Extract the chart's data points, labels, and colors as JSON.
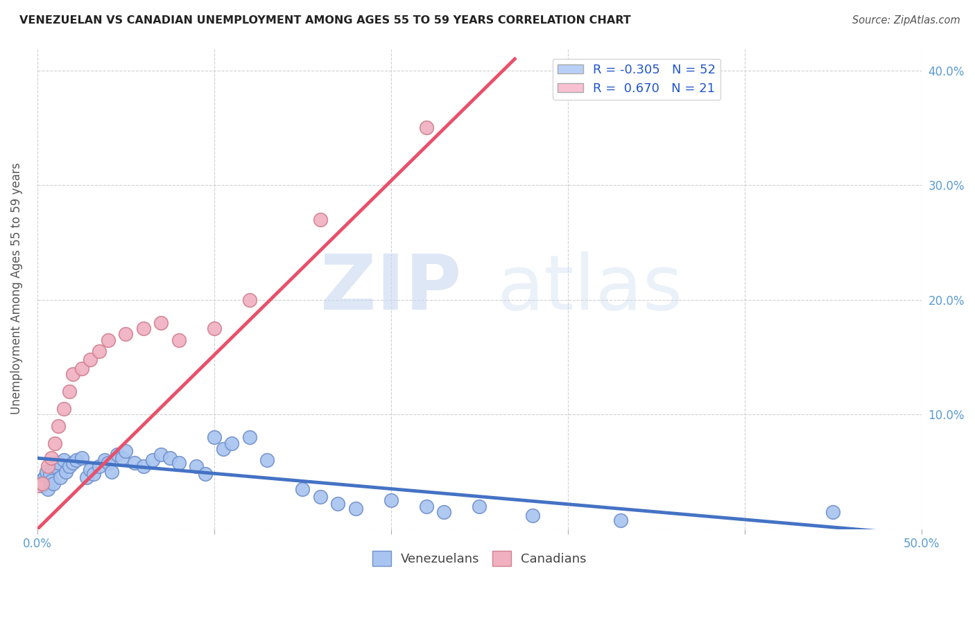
{
  "title": "VENEZUELAN VS CANADIAN UNEMPLOYMENT AMONG AGES 55 TO 59 YEARS CORRELATION CHART",
  "source": "Source: ZipAtlas.com",
  "ylabel": "Unemployment Among Ages 55 to 59 years",
  "xlim": [
    0.0,
    0.5
  ],
  "ylim": [
    0.0,
    0.42
  ],
  "yticks": [
    0.0,
    0.1,
    0.2,
    0.3,
    0.4
  ],
  "ytick_labels_right": [
    "",
    "10.0%",
    "20.0%",
    "30.0%",
    "40.0%"
  ],
  "xticks": [
    0.0,
    0.1,
    0.2,
    0.3,
    0.4,
    0.5
  ],
  "xtick_labels": [
    "0.0%",
    "",
    "",
    "",
    "",
    "50.0%"
  ],
  "venezuelan_color": "#a8c4f0",
  "canadian_color": "#f0b0c0",
  "venezuelan_edge": "#7090cc",
  "canadian_edge": "#d08090",
  "trend_blue": "#4472c4",
  "trend_pink": "#e8506a",
  "legend_box_blue": "#b8d0f8",
  "legend_box_pink": "#f8c0d0",
  "R_venezuelan": -0.305,
  "N_venezuelan": 52,
  "R_canadian": 0.67,
  "N_canadian": 21,
  "watermark_zip": "ZIP",
  "watermark_atlas": "atlas",
  "background_color": "#ffffff",
  "venezuelan_x": [
    0.001,
    0.002,
    0.003,
    0.004,
    0.005,
    0.006,
    0.007,
    0.008,
    0.009,
    0.01,
    0.012,
    0.013,
    0.015,
    0.016,
    0.018,
    0.02,
    0.022,
    0.025,
    0.028,
    0.03,
    0.032,
    0.035,
    0.038,
    0.04,
    0.042,
    0.045,
    0.048,
    0.05,
    0.055,
    0.06,
    0.065,
    0.07,
    0.075,
    0.08,
    0.09,
    0.095,
    0.1,
    0.105,
    0.11,
    0.12,
    0.13,
    0.15,
    0.16,
    0.17,
    0.18,
    0.2,
    0.22,
    0.23,
    0.25,
    0.28,
    0.33,
    0.45
  ],
  "venezuelan_y": [
    0.04,
    0.042,
    0.038,
    0.045,
    0.05,
    0.035,
    0.048,
    0.042,
    0.04,
    0.055,
    0.058,
    0.045,
    0.06,
    0.05,
    0.055,
    0.058,
    0.06,
    0.062,
    0.045,
    0.052,
    0.048,
    0.055,
    0.06,
    0.058,
    0.05,
    0.065,
    0.062,
    0.068,
    0.058,
    0.055,
    0.06,
    0.065,
    0.062,
    0.058,
    0.055,
    0.048,
    0.08,
    0.07,
    0.075,
    0.08,
    0.06,
    0.035,
    0.028,
    0.022,
    0.018,
    0.025,
    0.02,
    0.015,
    0.02,
    0.012,
    0.008,
    0.015
  ],
  "canadian_x": [
    0.0,
    0.003,
    0.006,
    0.008,
    0.01,
    0.012,
    0.015,
    0.018,
    0.02,
    0.025,
    0.03,
    0.035,
    0.04,
    0.05,
    0.06,
    0.07,
    0.08,
    0.1,
    0.12,
    0.16,
    0.22
  ],
  "canadian_y": [
    0.038,
    0.04,
    0.055,
    0.062,
    0.075,
    0.09,
    0.105,
    0.12,
    0.135,
    0.14,
    0.148,
    0.155,
    0.165,
    0.17,
    0.175,
    0.18,
    0.165,
    0.175,
    0.2,
    0.27,
    0.35
  ],
  "canadian_trend_x": [
    0.0,
    0.27
  ],
  "canadian_trend_y_start": 0.0,
  "canadian_trend_y_end": 0.41,
  "venezuelan_trend_x": [
    0.0,
    0.5
  ],
  "venezuelan_trend_y_start": 0.062,
  "venezuelan_trend_y_end": -0.005
}
